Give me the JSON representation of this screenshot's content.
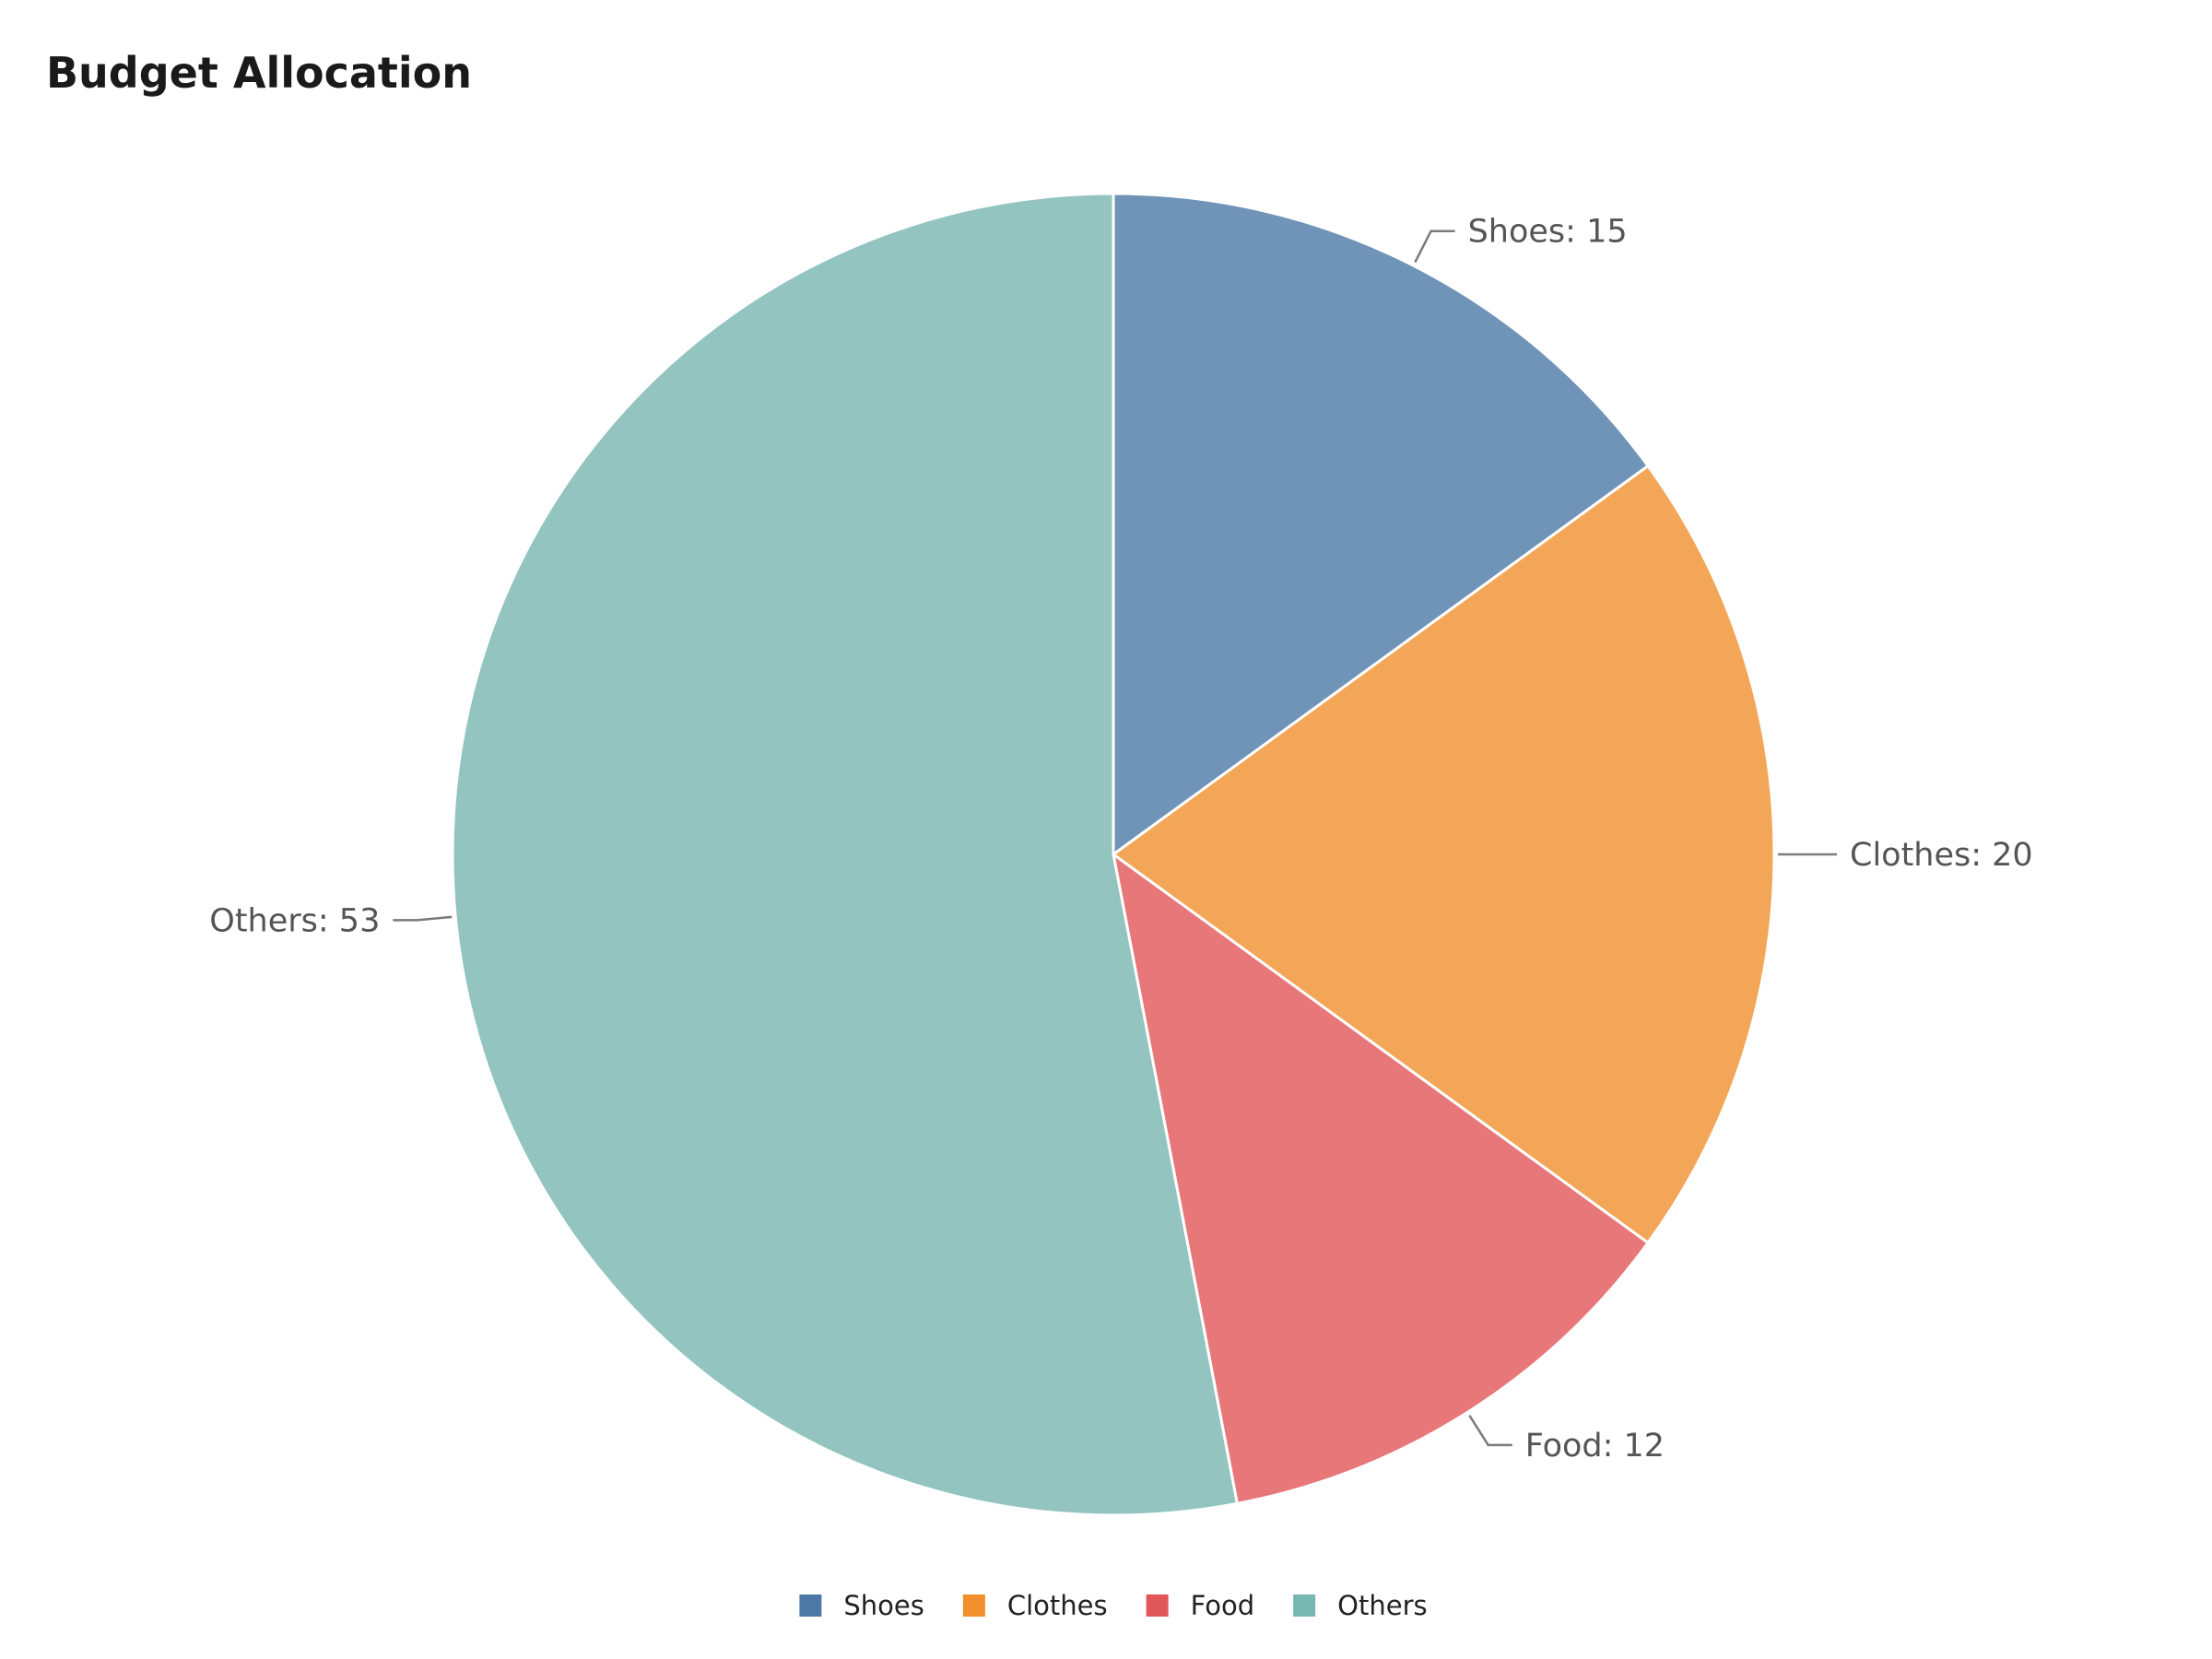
{
  "chart_data": {
    "type": "pie",
    "title": "Budget Allocation",
    "categories": [
      "Shoes",
      "Clothes",
      "Food",
      "Others"
    ],
    "values": [
      15,
      20,
      12,
      53
    ],
    "colors": [
      "#7093b8",
      "#f4a658",
      "#e87779",
      "#93c4c0"
    ],
    "legend_colors": [
      "#4e79a7",
      "#f28e2b",
      "#e15759",
      "#76b7b2"
    ],
    "labels": [
      "Shoes: 15",
      "Clothes: 20",
      "Food: 12",
      "Others: 53"
    ],
    "start_angle": "top, clockwise",
    "legend": "bottom-center"
  }
}
